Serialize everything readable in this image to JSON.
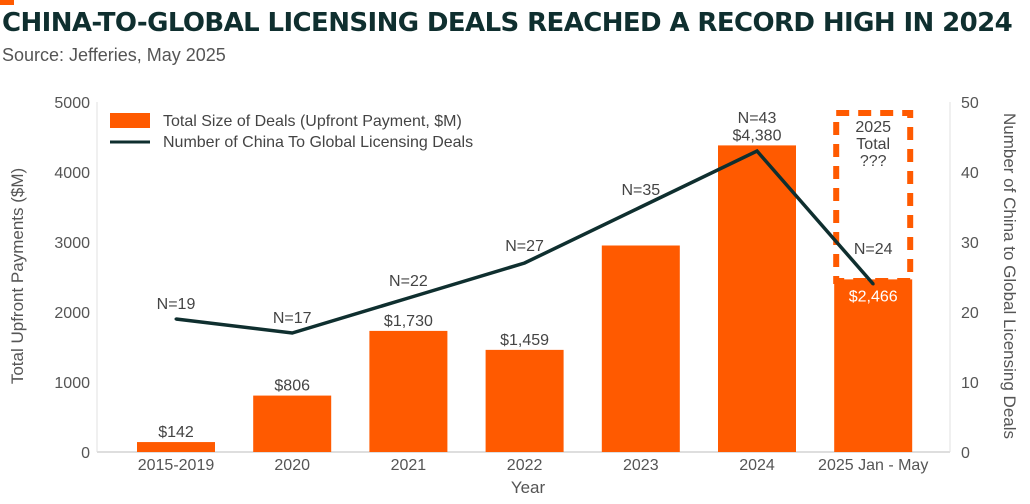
{
  "header": {
    "title": "CHINA-TO-GLOBAL LICENSING DEALS REACHED A RECORD HIGH IN 2024",
    "source": "Source: Jefferies, May 2025"
  },
  "colors": {
    "bar": "#ff5a00",
    "line": "#0f2f2f",
    "title": "#0f2f2f",
    "axis_text": "#555555"
  },
  "chart_data": {
    "type": "bar",
    "title": "CHINA-TO-GLOBAL LICENSING DEALS REACHED A RECORD HIGH IN 2024",
    "categories": [
      "2015-2019",
      "2020",
      "2021",
      "2022",
      "2023",
      "2024",
      "2025 Jan - May"
    ],
    "xlabel": "Year",
    "ylabel": "Total Upfront Payments ($M)",
    "y2label": "Number of China to Global Licensing Deals",
    "ylim": [
      0,
      5000
    ],
    "y2lim": [
      0,
      50
    ],
    "yticks": [
      "0",
      "1000",
      "2000",
      "3000",
      "4000",
      "5000"
    ],
    "y2ticks": [
      "0",
      "10",
      "20",
      "30",
      "40",
      "50"
    ],
    "series": [
      {
        "name": "Total Size of Deals (Upfront Payment, $M)",
        "type": "bar",
        "axis": "left",
        "values": [
          142,
          806,
          1730,
          1459,
          2950,
          4380,
          2466
        ],
        "labels": [
          "$142",
          "$806",
          "$1,730",
          "$1,459",
          "",
          "$4,380",
          "$2,466"
        ]
      },
      {
        "name": "Number of China To Global Licensing Deals",
        "type": "line",
        "axis": "right",
        "values": [
          19,
          17,
          22,
          27,
          35,
          43,
          24
        ],
        "labels": [
          "N=19",
          "N=17",
          "N=22",
          "N=27",
          "N=35",
          "N=43",
          "N=24"
        ]
      }
    ],
    "annotation": {
      "text_lines": [
        "2025",
        "Total",
        "???"
      ],
      "category": "2025 Jan - May",
      "style": "dashed-box"
    },
    "legend_position": "top-left",
    "grid": false
  }
}
